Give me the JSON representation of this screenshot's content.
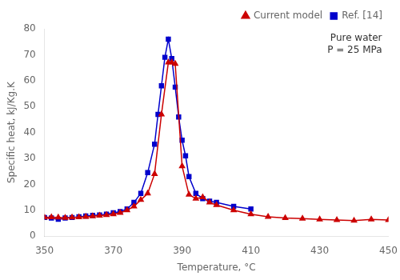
{
  "chart_data": {
    "type": "line",
    "xlabel": "Temperature, °C",
    "ylabel": "Specific heat, kJ/Kg.K",
    "annotation": "Pure water\nP = 25 MPa",
    "xlim": [
      350,
      450
    ],
    "ylim": [
      0,
      80
    ],
    "xticks": [
      350,
      370,
      390,
      410,
      430,
      450
    ],
    "yticks": [
      0,
      10,
      20,
      30,
      40,
      50,
      60,
      70,
      80
    ],
    "grid": false,
    "legend": "upper right",
    "series": [
      {
        "name": "Current model",
        "color": "#cc0000",
        "marker": "triangle",
        "x": [
          350,
          352,
          354,
          356,
          358,
          360,
          362,
          364,
          366,
          368,
          370,
          372,
          374,
          376,
          378,
          380,
          382,
          384,
          386,
          387,
          388,
          390,
          392,
          394,
          396,
          398,
          400,
          405,
          410,
          415,
          420,
          425,
          430,
          435,
          440,
          445,
          450
        ],
        "values": [
          7.2,
          7.3,
          7.2,
          7.1,
          7.2,
          7.3,
          7.5,
          7.7,
          7.9,
          8.2,
          8.5,
          9.0,
          10.0,
          11.5,
          14.0,
          16.5,
          24.0,
          47.0,
          67.0,
          67.0,
          66.5,
          27.0,
          16.0,
          14.5,
          15.0,
          13.0,
          12.0,
          10.0,
          8.5,
          7.5,
          7.0,
          6.8,
          6.5,
          6.2,
          6.0,
          6.5,
          6.2
        ]
      },
      {
        "name": "Ref. [14]",
        "color": "#0000cc",
        "marker": "square",
        "x": [
          350,
          352,
          354,
          356,
          358,
          360,
          362,
          364,
          366,
          368,
          370,
          372,
          374,
          376,
          378,
          380,
          382,
          383,
          384,
          385,
          386,
          387,
          388,
          389,
          390,
          391,
          392,
          394,
          396,
          398,
          400,
          405,
          410
        ],
        "values": [
          7.2,
          7.0,
          6.5,
          7.0,
          7.2,
          7.5,
          7.8,
          8.0,
          8.2,
          8.5,
          9.0,
          9.5,
          10.5,
          13.0,
          16.5,
          24.5,
          35.5,
          47.0,
          58.0,
          69.0,
          76.0,
          68.5,
          57.5,
          46.0,
          37.0,
          31.0,
          23.0,
          16.5,
          14.5,
          13.5,
          13.0,
          11.5,
          10.5
        ]
      }
    ]
  }
}
